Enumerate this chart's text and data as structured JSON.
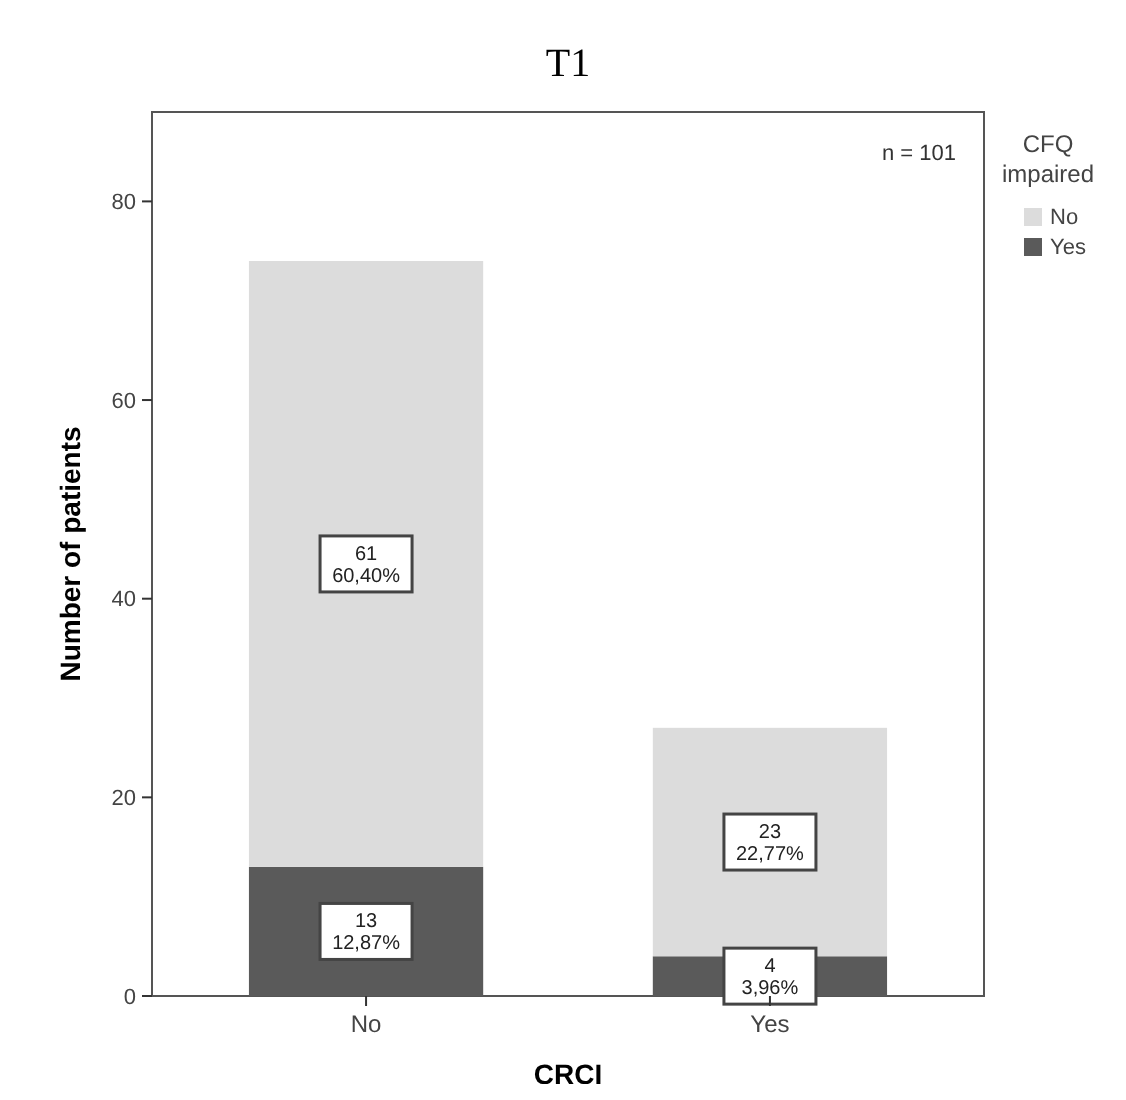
{
  "chart_data": {
    "type": "bar",
    "title": "T1",
    "xlabel": "CRCI",
    "ylabel": "Number of patients",
    "legend_title": "CFQ impaired",
    "categories": [
      "No",
      "Yes"
    ],
    "stacked": true,
    "series": [
      {
        "name": "Yes",
        "color": "#5a5a5a",
        "values": [
          13,
          4
        ],
        "value_labels": [
          "13\n12,87%",
          "4\n3,96%"
        ]
      },
      {
        "name": "No",
        "color": "#dcdcdc",
        "values": [
          61,
          23
        ],
        "value_labels": [
          "61\n60,40%",
          "23\n22,77%"
        ]
      }
    ],
    "ylim": [
      0,
      89
    ],
    "yticks": [
      0,
      20,
      40,
      60,
      80
    ],
    "grid": false,
    "legend": "right",
    "annotations": [
      "n = 101"
    ]
  }
}
